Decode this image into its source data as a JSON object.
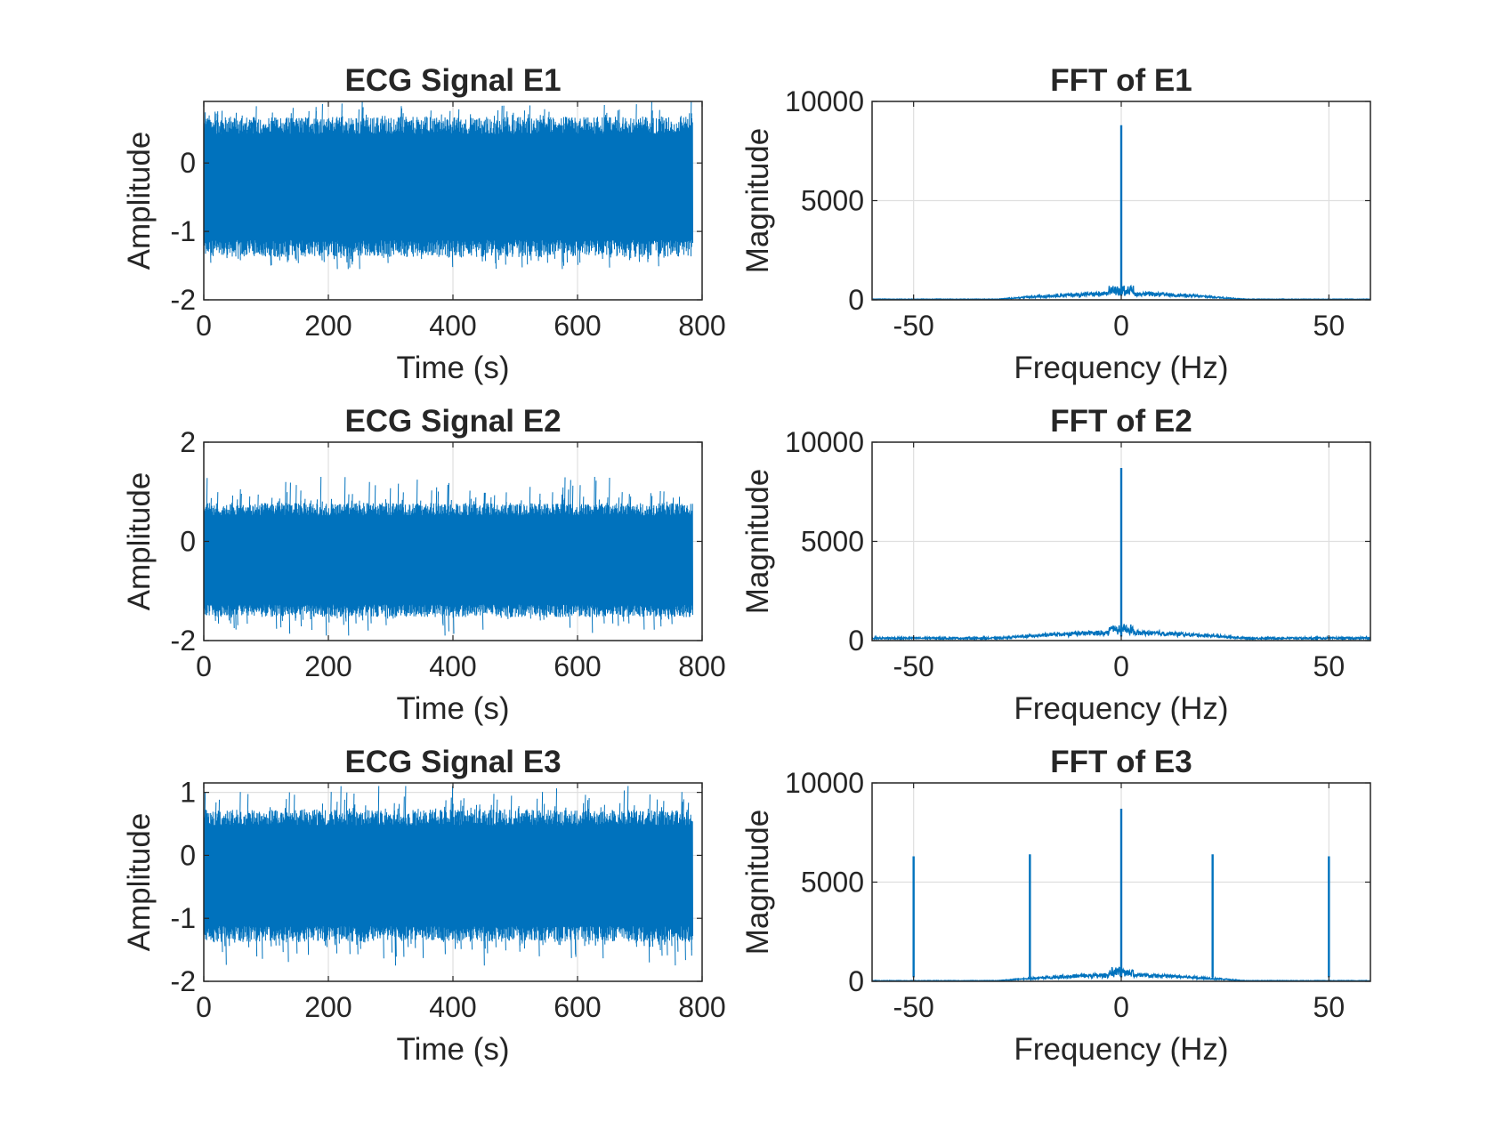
{
  "figure": {
    "background": "#ffffff"
  },
  "style": {
    "line_color": "#0072BD",
    "axis_color": "#262626",
    "grid_color": "#dfdfdf"
  },
  "chart_data": [
    {
      "type": "line",
      "title": "ECG Signal E1",
      "xlabel": "Time (s)",
      "ylabel": "Amplitude",
      "xlim": [
        0,
        800
      ],
      "ylim": [
        -2,
        0.9
      ],
      "grid": true,
      "xticks": [
        0,
        200,
        400,
        600,
        800
      ],
      "xtick_labels": [
        "0",
        "200",
        "400",
        "600",
        "800"
      ],
      "yticks": [
        -2,
        -1,
        0
      ],
      "ytick_labels": [
        "-2",
        "-1",
        "0"
      ],
      "series": [
        {
          "kind": "noise",
          "x_start": 0,
          "x_end": 785,
          "dense_min": -1.25,
          "dense_max": 0.55,
          "peak_min": -1.55,
          "peak_max": 0.9
        }
      ]
    },
    {
      "type": "line",
      "title": "FFT of E1",
      "xlabel": "Frequency (Hz)",
      "ylabel": "Magnitude",
      "xlim": [
        -60,
        60
      ],
      "ylim": [
        0,
        10000
      ],
      "grid": true,
      "xticks": [
        -50,
        0,
        50
      ],
      "xtick_labels": [
        "-50",
        "0",
        "50"
      ],
      "yticks": [
        0,
        5000,
        10000
      ],
      "ytick_labels": [
        "0",
        "5000",
        "10000"
      ],
      "series": [
        {
          "kind": "spectrum",
          "peaks": [
            {
              "x": 0,
              "y": 8800
            }
          ],
          "floor": 30
        }
      ]
    },
    {
      "type": "line",
      "title": "ECG Signal E2",
      "xlabel": "Time (s)",
      "ylabel": "Amplitude",
      "xlim": [
        0,
        800
      ],
      "ylim": [
        -2,
        2
      ],
      "grid": true,
      "xticks": [
        0,
        200,
        400,
        600,
        800
      ],
      "xtick_labels": [
        "0",
        "200",
        "400",
        "600",
        "800"
      ],
      "yticks": [
        -2,
        0,
        2
      ],
      "ytick_labels": [
        "-2",
        "0",
        "2"
      ],
      "series": [
        {
          "kind": "noise",
          "x_start": 0,
          "x_end": 785,
          "dense_min": -1.4,
          "dense_max": 0.65,
          "peak_min": -1.9,
          "peak_max": 1.3
        }
      ]
    },
    {
      "type": "line",
      "title": "FFT of E2",
      "xlabel": "Frequency (Hz)",
      "ylabel": "Magnitude",
      "xlim": [
        -60,
        60
      ],
      "ylim": [
        0,
        10000
      ],
      "grid": true,
      "xticks": [
        -50,
        0,
        50
      ],
      "xtick_labels": [
        "-50",
        "0",
        "50"
      ],
      "yticks": [
        0,
        5000,
        10000
      ],
      "ytick_labels": [
        "0",
        "5000",
        "10000"
      ],
      "series": [
        {
          "kind": "spectrum",
          "peaks": [
            {
              "x": 0,
              "y": 8700
            }
          ],
          "floor": 120
        }
      ]
    },
    {
      "type": "line",
      "title": "ECG Signal E3",
      "xlabel": "Time (s)",
      "ylabel": "Amplitude",
      "xlim": [
        0,
        800
      ],
      "ylim": [
        -2,
        1.15
      ],
      "grid": true,
      "xticks": [
        0,
        200,
        400,
        600,
        800
      ],
      "xtick_labels": [
        "0",
        "200",
        "400",
        "600",
        "800"
      ],
      "yticks": [
        -2,
        -1,
        0,
        1
      ],
      "ytick_labels": [
        "-2",
        "-1",
        "0",
        "1"
      ],
      "series": [
        {
          "kind": "noise",
          "x_start": 0,
          "x_end": 785,
          "dense_min": -1.25,
          "dense_max": 0.6,
          "peak_min": -1.75,
          "peak_max": 1.1
        }
      ]
    },
    {
      "type": "line",
      "title": "FFT of E3",
      "xlabel": "Frequency (Hz)",
      "ylabel": "Magnitude",
      "xlim": [
        -60,
        60
      ],
      "ylim": [
        0,
        10000
      ],
      "grid": true,
      "xticks": [
        -50,
        0,
        50
      ],
      "xtick_labels": [
        "-50",
        "0",
        "50"
      ],
      "yticks": [
        0,
        5000,
        10000
      ],
      "ytick_labels": [
        "0",
        "5000",
        "10000"
      ],
      "series": [
        {
          "kind": "spectrum",
          "peaks": [
            {
              "x": -50,
              "y": 6300
            },
            {
              "x": -22,
              "y": 6400
            },
            {
              "x": 0,
              "y": 8700
            },
            {
              "x": 22,
              "y": 6400
            },
            {
              "x": 50,
              "y": 6300
            }
          ],
          "floor": 30
        }
      ]
    }
  ]
}
